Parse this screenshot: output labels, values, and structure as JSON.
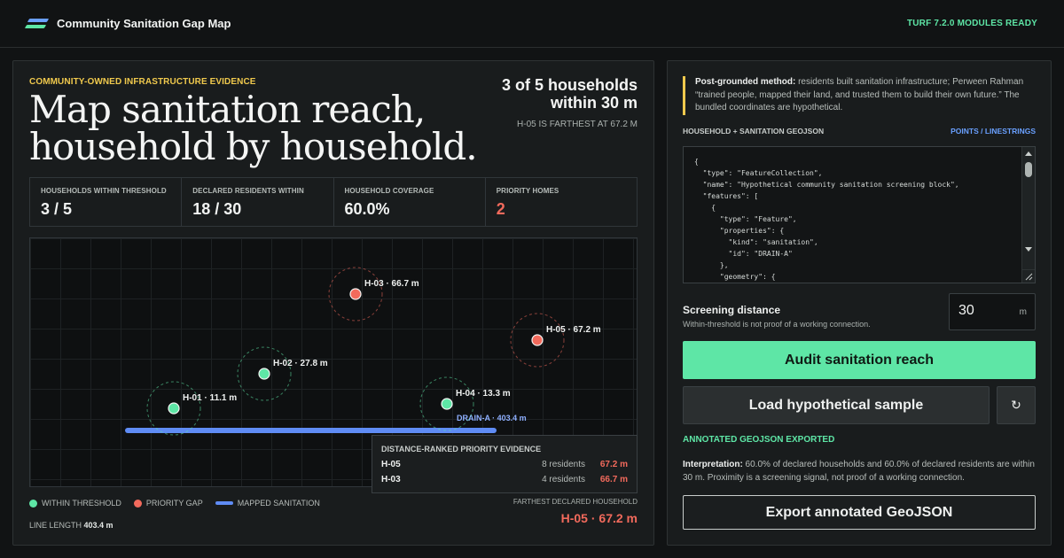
{
  "app": {
    "title": "Community Sanitation Gap Map",
    "status": "TURF 7.2.0 MODULES READY"
  },
  "hero": {
    "eyebrow": "COMMUNITY-OWNED INFRASTRUCTURE EVIDENCE",
    "headline_line1": "Map sanitation reach,",
    "headline_line2": "household by household.",
    "summary_line1": "3 of 5 households",
    "summary_line2": "within 30 m",
    "summary_sub": "H-05 IS FARTHEST AT 67.2 M"
  },
  "stats": [
    {
      "label": "HOUSEHOLDS WITHIN THRESHOLD",
      "value": "3 / 5"
    },
    {
      "label": "DECLARED RESIDENTS WITHIN",
      "value": "18 / 30"
    },
    {
      "label": "HOUSEHOLD COVERAGE",
      "value": "60.0%"
    },
    {
      "label": "PRIORITY HOMES",
      "value": "2"
    }
  ],
  "map": {
    "households": [
      {
        "id": "H-01",
        "distance_m": 11.1,
        "label": "H-01 · 11.1 m",
        "status": "within"
      },
      {
        "id": "H-02",
        "distance_m": 27.8,
        "label": "H-02 · 27.8 m",
        "status": "within"
      },
      {
        "id": "H-03",
        "distance_m": 66.7,
        "label": "H-03 · 66.7 m",
        "status": "priority"
      },
      {
        "id": "H-04",
        "distance_m": 13.3,
        "label": "H-04 · 13.3 m",
        "status": "within"
      },
      {
        "id": "H-05",
        "distance_m": 67.2,
        "label": "H-05 · 67.2 m",
        "status": "priority"
      }
    ],
    "line_label": "DRAIN-A · 403.4 m",
    "colors": {
      "within": "#5ee6a6",
      "priority": "#f26a5c",
      "sanitation": "#5f8cf5"
    }
  },
  "evidence": {
    "title": "DISTANCE-RANKED PRIORITY EVIDENCE",
    "rows": [
      {
        "id": "H-05",
        "residents": "8 residents",
        "distance": "67.2 m"
      },
      {
        "id": "H-03",
        "residents": "4 residents",
        "distance": "66.7 m"
      }
    ]
  },
  "legend": {
    "within": "WITHIN THRESHOLD",
    "priority": "PRIORITY GAP",
    "sanitation": "MAPPED SANITATION",
    "line_length_label": "LINE LENGTH",
    "line_length_value": "403.4 m"
  },
  "farthest": {
    "label": "FARTHEST DECLARED HOUSEHOLD",
    "value": "H-05 · 67.2 m"
  },
  "method": {
    "label": "Post-grounded method:",
    "text": " residents built sanitation infrastructure; Perween Rahman “trained people, mapped their land, and trusted them to build their own future.” The bundled coordinates are hypothetical."
  },
  "geojson": {
    "title": "HOUSEHOLD + SANITATION GEOJSON",
    "mode": "POINTS / LINESTRINGS",
    "content": "{\n  \"type\": \"FeatureCollection\",\n  \"name\": \"Hypothetical community sanitation screening block\",\n  \"features\": [\n    {\n      \"type\": \"Feature\",\n      \"properties\": {\n        \"kind\": \"sanitation\",\n        \"id\": \"DRAIN-A\"\n      },\n      \"geometry\": {"
  },
  "screening": {
    "label": "Screening distance",
    "hint": "Within-threshold is not proof of a working connection.",
    "value": "30",
    "unit": "m"
  },
  "buttons": {
    "audit": "Audit sanitation reach",
    "sample": "Load hypothetical sample",
    "reset_icon": "↻",
    "export": "Export annotated GeoJSON"
  },
  "export_status": "ANNOTATED GEOJSON EXPORTED",
  "interpretation": {
    "label": "Interpretation:",
    "text": " 60.0% of declared households and 60.0% of declared residents are within 30 m. Proximity is a screening signal, not proof of a working connection."
  }
}
